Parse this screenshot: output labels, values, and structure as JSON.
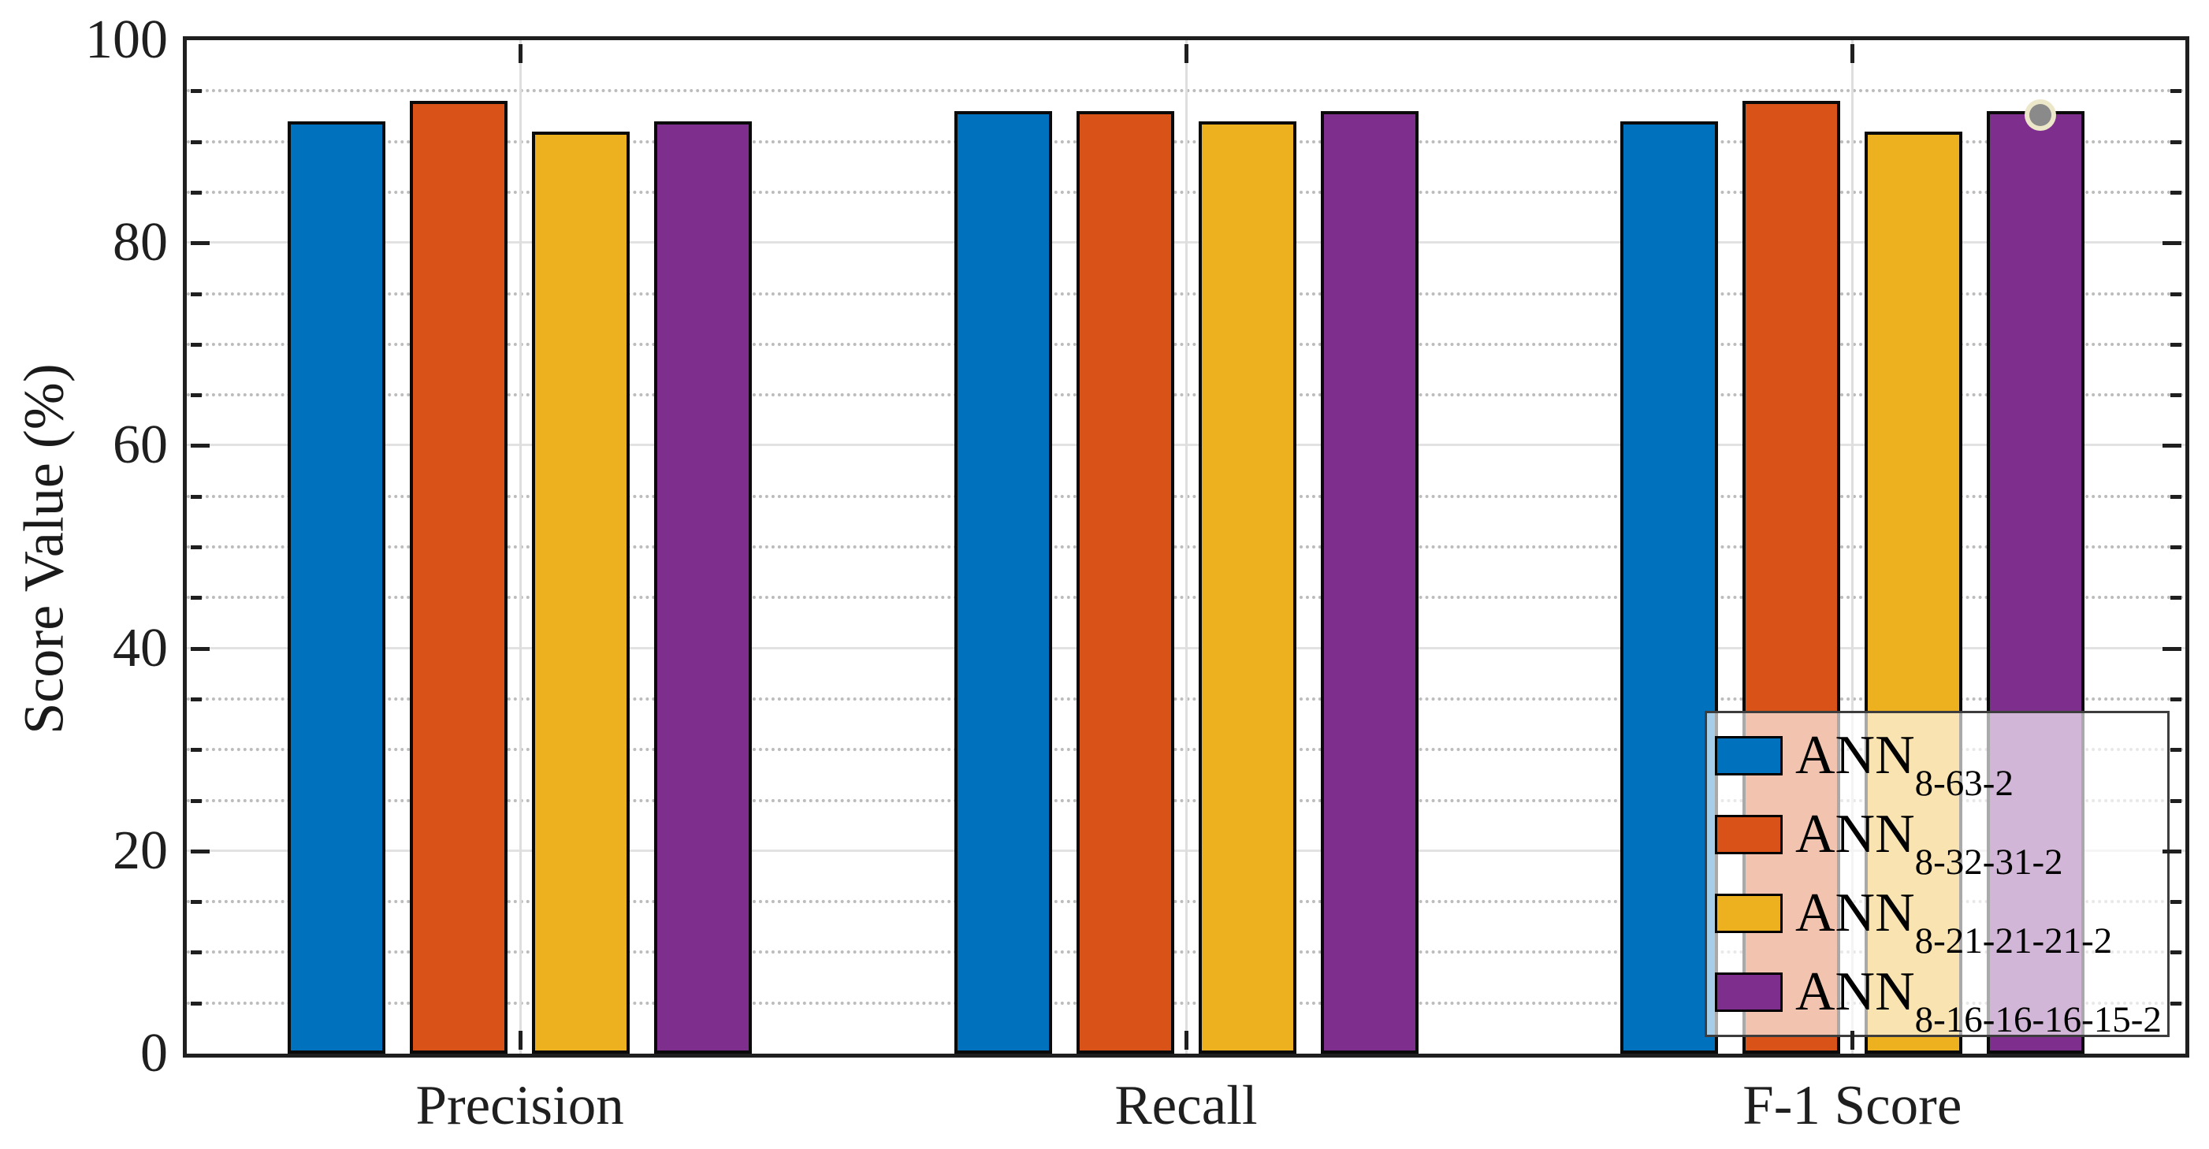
{
  "chart_data": {
    "type": "bar",
    "title": "",
    "xlabel": "",
    "ylabel": "Score Value (%)",
    "ylim": [
      0,
      100
    ],
    "yticks_major": [
      0,
      20,
      40,
      60,
      80,
      100
    ],
    "ytick_minor_step": 5,
    "grid": {
      "y_major": true,
      "y_minor": "dotted",
      "x_major_at_category_centers": true
    },
    "categories": [
      "Precision",
      "Recall",
      "F-1 Score"
    ],
    "series": [
      {
        "name_base": "ANN",
        "name_subscript": "8-63-2",
        "color": "#0072BD",
        "values": [
          92,
          93,
          92
        ]
      },
      {
        "name_base": "ANN",
        "name_subscript": "8-32-31-2",
        "color": "#D95319",
        "values": [
          94,
          93,
          94
        ]
      },
      {
        "name_base": "ANN",
        "name_subscript": "8-21-21-21-2",
        "color": "#EDB120",
        "values": [
          91,
          92,
          91
        ]
      },
      {
        "name_base": "ANN",
        "name_subscript": "8-16-16-16-15-2",
        "color": "#7E2F8E",
        "values": [
          92,
          93,
          93
        ]
      }
    ],
    "bar_edge_color": "#0a0a0a",
    "legend_position": "bottom-right"
  },
  "annotations": {
    "cursor_dot": {
      "description": "small gray pointer dot with pale halo resting on top of the purple bar in the F-1 Score group",
      "category_index": 2,
      "series_index": 3,
      "fill": "#8a8a8a",
      "halo": "rgba(242,236,206,0.95)"
    }
  }
}
